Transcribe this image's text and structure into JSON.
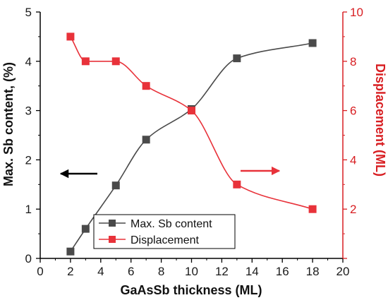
{
  "chart_data": {
    "type": "line",
    "xlabel": "GaAsSb thickness (ML)",
    "ylabel": "Max. Sb content, (%)",
    "y2label": "Displacement (ML)",
    "xlim": [
      0,
      20
    ],
    "ylim": [
      0,
      5
    ],
    "y2lim": [
      0,
      10
    ],
    "x_ticks": [
      0,
      2,
      4,
      6,
      8,
      10,
      12,
      14,
      16,
      18,
      20
    ],
    "y_ticks": [
      0,
      1,
      2,
      3,
      4,
      5
    ],
    "y2_ticks": [
      2,
      4,
      6,
      8,
      10
    ],
    "grid": false,
    "legend_position": "bottom-center",
    "series": [
      {
        "name": "Max. Sb content",
        "axis": "left",
        "color": "#4a4a4a",
        "marker": "square",
        "x": [
          2,
          3,
          5,
          7,
          10,
          13,
          18
        ],
        "values": [
          0.14,
          0.6,
          1.48,
          2.41,
          3.03,
          4.06,
          4.37
        ]
      },
      {
        "name": "Displacement",
        "axis": "right",
        "color": "#e8323a",
        "marker": "square",
        "x": [
          2,
          3,
          5,
          7,
          10,
          13,
          18
        ],
        "values": [
          9,
          8,
          8,
          7,
          6,
          3,
          2
        ]
      }
    ],
    "annotations": [
      {
        "type": "arrow",
        "direction": "left",
        "color": "#000000",
        "points_to_axis": "left"
      },
      {
        "type": "arrow",
        "direction": "right",
        "color": "#e8323a",
        "points_to_axis": "right"
      }
    ]
  }
}
